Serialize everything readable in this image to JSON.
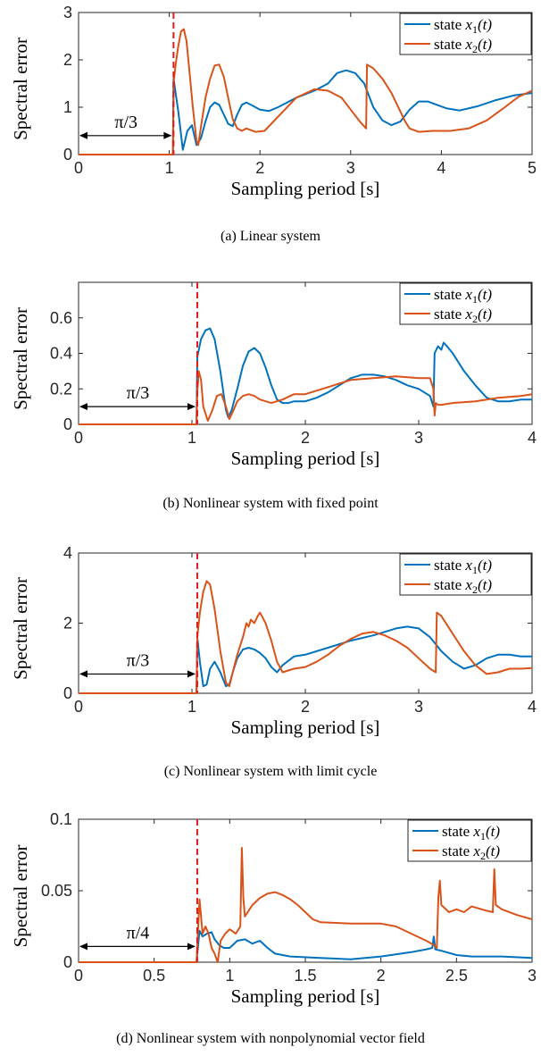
{
  "colors": {
    "series1": "#0072bd",
    "series2": "#d95319",
    "threshold": "#e31a1c",
    "axis": "#262626"
  },
  "panels": [
    {
      "caption": "(a) Linear system",
      "chart_data": {
        "type": "line",
        "xlabel": "Sampling period [s]",
        "ylabel": "Spectral error",
        "xlim": [
          0,
          5
        ],
        "ylim": [
          0,
          3
        ],
        "xticks": [
          0,
          1,
          2,
          3,
          4,
          5
        ],
        "xtick_labels": [
          "0",
          "1",
          "2",
          "3",
          "4",
          "5"
        ],
        "yticks": [
          0,
          1,
          2,
          3
        ],
        "ytick_labels": [
          "0",
          "1",
          "2",
          "3"
        ],
        "grid": false,
        "legend_position": "top-right",
        "threshold_x": 1.047,
        "annotation": {
          "text": "π/3",
          "y": 0.4
        },
        "series": [
          {
            "name": "state x1(t)",
            "legend_main": "state ",
            "legend_var": "x",
            "legend_sub": "1",
            "legend_tail": "(t)",
            "x": [
              0,
              1.04,
              1.047,
              1.1,
              1.15,
              1.2,
              1.25,
              1.3,
              1.35,
              1.4,
              1.45,
              1.5,
              1.55,
              1.6,
              1.65,
              1.7,
              1.75,
              1.8,
              1.85,
              1.9,
              2.0,
              2.1,
              2.2,
              2.4,
              2.6,
              2.75,
              2.85,
              2.95,
              3.05,
              3.15,
              3.25,
              3.35,
              3.45,
              3.55,
              3.65,
              3.75,
              3.85,
              3.95,
              4.05,
              4.2,
              4.4,
              4.6,
              4.8,
              5.0
            ],
            "y": [
              0,
              0,
              1.6,
              0.9,
              0.1,
              0.5,
              0.62,
              0.2,
              0.35,
              0.7,
              1.0,
              1.1,
              1.05,
              0.85,
              0.65,
              0.6,
              0.85,
              1.05,
              1.1,
              1.05,
              0.95,
              0.92,
              1.0,
              1.2,
              1.35,
              1.5,
              1.72,
              1.78,
              1.72,
              1.5,
              1.0,
              0.72,
              0.62,
              0.7,
              0.95,
              1.12,
              1.12,
              1.05,
              0.98,
              0.93,
              1.02,
              1.15,
              1.25,
              1.3
            ]
          },
          {
            "name": "state x2(t)",
            "legend_main": "state ",
            "legend_var": "x",
            "legend_sub": "2",
            "legend_tail": "(t)",
            "x": [
              0,
              1.04,
              1.047,
              1.07,
              1.1,
              1.13,
              1.16,
              1.19,
              1.22,
              1.26,
              1.3,
              1.32,
              1.35,
              1.4,
              1.45,
              1.5,
              1.55,
              1.6,
              1.65,
              1.7,
              1.75,
              1.8,
              1.85,
              1.95,
              2.05,
              2.2,
              2.4,
              2.6,
              2.75,
              2.9,
              3.0,
              3.1,
              3.17,
              3.18,
              3.25,
              3.35,
              3.45,
              3.55,
              3.6,
              3.65,
              3.75,
              3.9,
              4.1,
              4.3,
              4.5,
              4.7,
              4.85,
              5.0
            ],
            "y": [
              0,
              0,
              1.5,
              1.9,
              2.3,
              2.6,
              2.65,
              2.4,
              1.8,
              1.0,
              0.3,
              0.2,
              0.6,
              1.2,
              1.6,
              1.88,
              1.9,
              1.65,
              1.2,
              0.75,
              0.55,
              0.5,
              0.55,
              0.48,
              0.5,
              0.8,
              1.2,
              1.38,
              1.35,
              1.2,
              0.95,
              0.7,
              0.55,
              1.9,
              1.82,
              1.6,
              1.3,
              0.9,
              0.7,
              0.55,
              0.48,
              0.5,
              0.5,
              0.55,
              0.72,
              1.0,
              1.22,
              1.35
            ]
          }
        ]
      }
    },
    {
      "caption": "(b) Nonlinear system with fixed point",
      "chart_data": {
        "type": "line",
        "xlabel": "Sampling period [s]",
        "ylabel": "Spectral error",
        "xlim": [
          0,
          4
        ],
        "ylim": [
          0,
          0.8
        ],
        "xticks": [
          0,
          1,
          2,
          3,
          4
        ],
        "xtick_labels": [
          "0",
          "1",
          "2",
          "3",
          "4"
        ],
        "yticks": [
          0,
          0.2,
          0.4,
          0.6
        ],
        "ytick_labels": [
          "0",
          "0.2",
          "0.4",
          "0.6"
        ],
        "grid": false,
        "legend_position": "top-right",
        "threshold_x": 1.047,
        "annotation": {
          "text": "π/3",
          "y": 0.1
        },
        "series": [
          {
            "name": "state x1(t)",
            "legend_main": "state ",
            "legend_var": "x",
            "legend_sub": "1",
            "legend_tail": "(t)",
            "x": [
              0,
              1.04,
              1.047,
              1.08,
              1.12,
              1.16,
              1.2,
              1.25,
              1.3,
              1.32,
              1.35,
              1.4,
              1.45,
              1.5,
              1.55,
              1.6,
              1.65,
              1.7,
              1.75,
              1.8,
              1.85,
              1.9,
              2.0,
              2.1,
              2.2,
              2.3,
              2.4,
              2.5,
              2.6,
              2.7,
              2.8,
              2.9,
              3.0,
              3.1,
              3.13,
              3.14,
              3.17,
              3.2,
              3.22,
              3.25,
              3.3,
              3.4,
              3.5,
              3.6,
              3.7,
              3.8,
              3.9,
              4.0
            ],
            "y": [
              0,
              0,
              0.38,
              0.48,
              0.53,
              0.54,
              0.48,
              0.3,
              0.08,
              0.04,
              0.08,
              0.2,
              0.33,
              0.41,
              0.43,
              0.4,
              0.32,
              0.22,
              0.14,
              0.12,
              0.12,
              0.13,
              0.13,
              0.15,
              0.18,
              0.22,
              0.26,
              0.28,
              0.28,
              0.27,
              0.25,
              0.22,
              0.2,
              0.16,
              0.1,
              0.4,
              0.44,
              0.42,
              0.46,
              0.44,
              0.4,
              0.3,
              0.22,
              0.15,
              0.13,
              0.13,
              0.14,
              0.14
            ]
          },
          {
            "name": "state x2(t)",
            "legend_main": "state ",
            "legend_var": "x",
            "legend_sub": "2",
            "legend_tail": "(t)",
            "x": [
              0,
              1.04,
              1.047,
              1.06,
              1.08,
              1.1,
              1.14,
              1.18,
              1.22,
              1.26,
              1.3,
              1.33,
              1.36,
              1.4,
              1.45,
              1.5,
              1.55,
              1.6,
              1.7,
              1.8,
              1.9,
              2.0,
              2.2,
              2.4,
              2.6,
              2.8,
              3.0,
              3.1,
              3.13,
              3.14,
              3.15,
              3.17,
              3.2,
              3.3,
              3.5,
              3.7,
              3.9,
              4.0
            ],
            "y": [
              0,
              0,
              0.18,
              0.3,
              0.25,
              0.1,
              0.02,
              0.08,
              0.16,
              0.17,
              0.1,
              0.03,
              0.07,
              0.13,
              0.16,
              0.17,
              0.16,
              0.14,
              0.12,
              0.14,
              0.17,
              0.17,
              0.21,
              0.25,
              0.26,
              0.27,
              0.26,
              0.26,
              0.2,
              0.05,
              0.12,
              0.11,
              0.11,
              0.12,
              0.13,
              0.15,
              0.16,
              0.17
            ]
          }
        ]
      }
    },
    {
      "caption": "(c) Nonlinear system with limit cycle",
      "chart_data": {
        "type": "line",
        "xlabel": "Sampling period [s]",
        "ylabel": "Spectral error",
        "xlim": [
          0,
          4
        ],
        "ylim": [
          0,
          4
        ],
        "xticks": [
          0,
          1,
          2,
          3,
          4
        ],
        "xtick_labels": [
          "0",
          "1",
          "2",
          "3",
          "4"
        ],
        "yticks": [
          0,
          2,
          4
        ],
        "ytick_labels": [
          "0",
          "2",
          "4"
        ],
        "grid": false,
        "legend_position": "top-right",
        "threshold_x": 1.047,
        "annotation": {
          "text": "π/3",
          "y": 0.55
        },
        "series": [
          {
            "name": "state x1(t)",
            "legend_main": "state ",
            "legend_var": "x",
            "legend_sub": "1",
            "legend_tail": "(t)",
            "x": [
              0,
              1.04,
              1.047,
              1.07,
              1.1,
              1.13,
              1.16,
              1.2,
              1.25,
              1.3,
              1.33,
              1.36,
              1.4,
              1.45,
              1.5,
              1.55,
              1.6,
              1.65,
              1.7,
              1.75,
              1.8,
              1.9,
              2.0,
              2.2,
              2.4,
              2.6,
              2.8,
              2.9,
              3.0,
              3.1,
              3.2,
              3.3,
              3.4,
              3.5,
              3.6,
              3.7,
              3.8,
              3.9,
              4.0
            ],
            "y": [
              0,
              0,
              1.6,
              0.9,
              0.2,
              0.25,
              0.7,
              0.9,
              0.6,
              0.2,
              0.25,
              0.6,
              1.0,
              1.25,
              1.3,
              1.25,
              1.15,
              1.0,
              0.75,
              0.6,
              0.8,
              1.05,
              1.1,
              1.3,
              1.5,
              1.65,
              1.85,
              1.9,
              1.85,
              1.6,
              1.2,
              0.9,
              0.7,
              0.8,
              1.0,
              1.1,
              1.1,
              1.05,
              1.05
            ]
          },
          {
            "name": "state x2(t)",
            "legend_main": "state ",
            "legend_var": "x",
            "legend_sub": "2",
            "legend_tail": "(t)",
            "x": [
              0,
              1.04,
              1.047,
              1.07,
              1.1,
              1.13,
              1.16,
              1.2,
              1.25,
              1.3,
              1.33,
              1.36,
              1.4,
              1.45,
              1.48,
              1.5,
              1.52,
              1.55,
              1.58,
              1.6,
              1.65,
              1.7,
              1.75,
              1.8,
              1.9,
              2.0,
              2.1,
              2.2,
              2.3,
              2.4,
              2.5,
              2.6,
              2.7,
              2.8,
              2.9,
              3.0,
              3.1,
              3.15,
              3.16,
              3.2,
              3.3,
              3.4,
              3.5,
              3.6,
              3.7,
              3.8,
              3.9,
              4.0
            ],
            "y": [
              0,
              0,
              1.6,
              2.3,
              2.9,
              3.2,
              3.1,
              2.4,
              1.2,
              0.3,
              0.2,
              0.6,
              1.1,
              1.6,
              2.0,
              1.9,
              2.1,
              2.0,
              2.2,
              2.3,
              2.0,
              1.5,
              0.9,
              0.6,
              0.7,
              0.75,
              0.9,
              1.1,
              1.35,
              1.55,
              1.7,
              1.75,
              1.65,
              1.5,
              1.3,
              1.0,
              0.7,
              0.6,
              2.3,
              2.2,
              1.7,
              1.2,
              0.8,
              0.55,
              0.6,
              0.7,
              0.7,
              0.72
            ]
          }
        ]
      }
    },
    {
      "caption": "(d) Nonlinear system with nonpolynomial vector field",
      "chart_data": {
        "type": "line",
        "xlabel": "Sampling period [s]",
        "ylabel": "Spectral error",
        "xlim": [
          0,
          3
        ],
        "ylim": [
          0,
          0.1
        ],
        "xticks": [
          0,
          0.5,
          1,
          1.5,
          2,
          2.5,
          3
        ],
        "xtick_labels": [
          "0",
          "0.5",
          "1",
          "1.5",
          "2",
          "2.5",
          "3"
        ],
        "yticks": [
          0,
          0.05,
          0.1
        ],
        "ytick_labels": [
          "0",
          "0.05",
          "0.1"
        ],
        "grid": false,
        "legend_position": "top-right",
        "threshold_x": 0.785,
        "annotation": {
          "text": "π/4",
          "y": 0.011
        },
        "series": [
          {
            "name": "state x1(t)",
            "legend_main": "state ",
            "legend_var": "x",
            "legend_sub": "1",
            "legend_tail": "(t)",
            "x": [
              0,
              0.78,
              0.785,
              0.8,
              0.82,
              0.85,
              0.88,
              0.9,
              0.93,
              0.96,
              1.0,
              1.05,
              1.1,
              1.15,
              1.2,
              1.25,
              1.3,
              1.4,
              1.6,
              1.8,
              2.0,
              2.2,
              2.3,
              2.34,
              2.35,
              2.36,
              2.4,
              2.5,
              2.6,
              2.8,
              3.0
            ],
            "y": [
              0,
              0,
              0.005,
              0.022,
              0.018,
              0.02,
              0.021,
              0.016,
              0.012,
              0.01,
              0.01,
              0.015,
              0.016,
              0.013,
              0.015,
              0.01,
              0.006,
              0.004,
              0.003,
              0.002,
              0.004,
              0.007,
              0.009,
              0.01,
              0.018,
              0.009,
              0.008,
              0.005,
              0.004,
              0.004,
              0.003
            ]
          },
          {
            "name": "state x2(t)",
            "legend_main": "state ",
            "legend_var": "x",
            "legend_sub": "2",
            "legend_tail": "(t)",
            "x": [
              0,
              0.78,
              0.785,
              0.8,
              0.82,
              0.84,
              0.86,
              0.88,
              0.9,
              0.92,
              0.94,
              0.97,
              1.0,
              1.04,
              1.07,
              1.08,
              1.09,
              1.1,
              1.15,
              1.2,
              1.25,
              1.3,
              1.35,
              1.4,
              1.45,
              1.5,
              1.55,
              1.6,
              1.8,
              2.0,
              2.1,
              2.2,
              2.3,
              2.35,
              2.37,
              2.38,
              2.39,
              2.4,
              2.45,
              2.5,
              2.55,
              2.6,
              2.7,
              2.74,
              2.75,
              2.76,
              2.8,
              2.9,
              3.0
            ],
            "y": [
              0,
              0,
              0.01,
              0.044,
              0.02,
              0.025,
              0.02,
              0.01,
              0.006,
              0.0,
              0.015,
              0.02,
              0.023,
              0.02,
              0.025,
              0.08,
              0.045,
              0.032,
              0.04,
              0.045,
              0.048,
              0.049,
              0.047,
              0.044,
              0.04,
              0.035,
              0.03,
              0.028,
              0.027,
              0.027,
              0.025,
              0.02,
              0.015,
              0.012,
              0.01,
              0.045,
              0.057,
              0.04,
              0.035,
              0.037,
              0.035,
              0.039,
              0.036,
              0.035,
              0.065,
              0.04,
              0.037,
              0.033,
              0.03
            ]
          }
        ]
      }
    }
  ]
}
